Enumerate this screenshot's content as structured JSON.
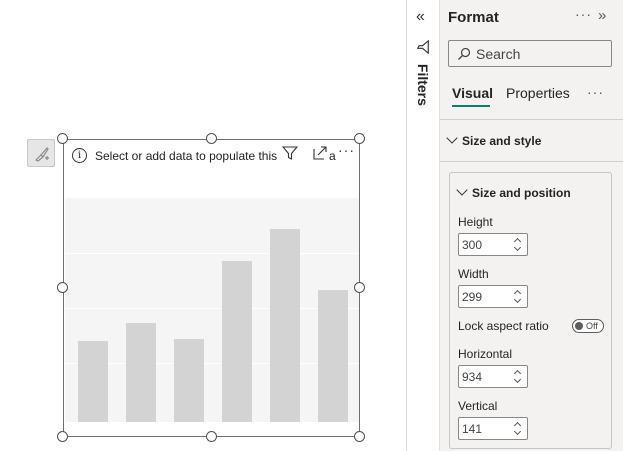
{
  "visual": {
    "placeholder_text": "Select or add data to populate this",
    "placeholder_overflow": "a",
    "more_label": "···",
    "bar_values": [
      0.36,
      0.44,
      0.37,
      0.72,
      0.86,
      0.59
    ]
  },
  "filters": {
    "label": "Filters",
    "collapse_label": "«"
  },
  "format_pane": {
    "title": "Format",
    "more_label": "···",
    "expand_label": "»",
    "search": {
      "placeholder": "Search"
    },
    "tabs": [
      {
        "label": "Visual",
        "selected": true
      },
      {
        "label": "Properties",
        "selected": false
      }
    ],
    "tabs_more_label": "···",
    "section": {
      "title": "Size and style",
      "card": {
        "title": "Size and position",
        "fields": [
          {
            "label": "Height",
            "value": "300"
          },
          {
            "label": "Width",
            "value": "299"
          },
          {
            "label": "Horizontal",
            "value": "934"
          },
          {
            "label": "Vertical",
            "value": "141"
          }
        ],
        "lock_aspect": {
          "label": "Lock aspect ratio",
          "state": "Off"
        }
      }
    }
  },
  "colors": {
    "accent": "#107c6e",
    "bar": "#d3d3d4",
    "plot_bg": "#f5f5f5",
    "pane_bg": "#f3f2f1"
  }
}
